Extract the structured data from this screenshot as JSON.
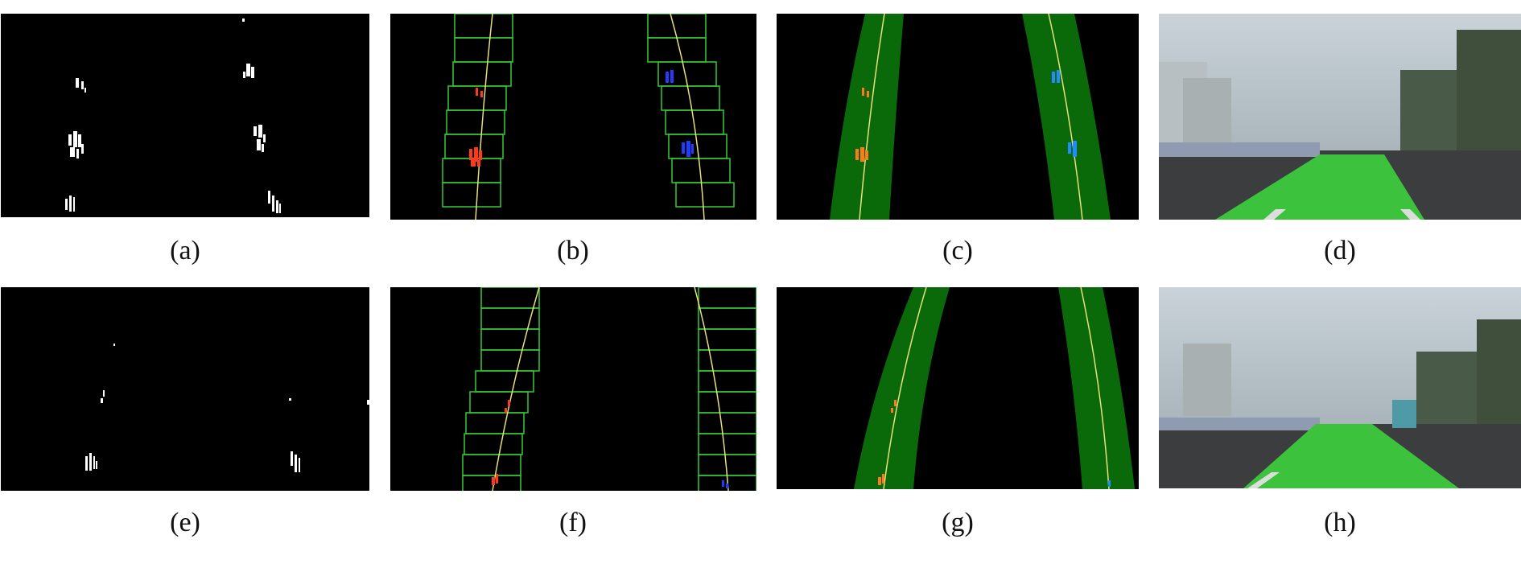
{
  "figure": {
    "captions": [
      "(a)",
      "(b)",
      "(c)",
      "(d)",
      "(e)",
      "(f)",
      "(g)",
      "(h)"
    ]
  },
  "colors": {
    "background_panel": "#000000",
    "sliding_window": "#33cc33",
    "fitted_curve": "#e8e07a",
    "left_lane_pixels": "#ff3a1a",
    "right_lane_pixels": "#1f3cff",
    "lane_band": "#0a6a0a",
    "drivable_area_overlay": "#3cc23c"
  }
}
